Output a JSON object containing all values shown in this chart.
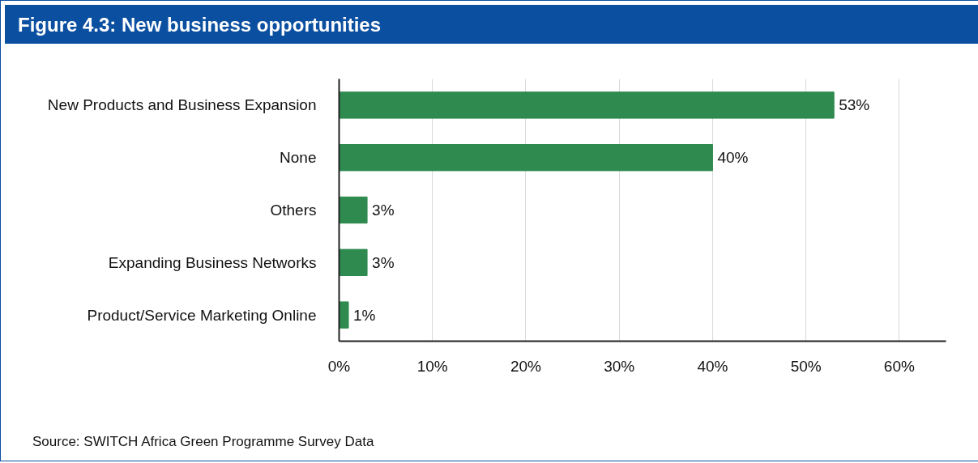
{
  "chart_data": {
    "type": "bar",
    "orientation": "horizontal",
    "title": "Figure 4.3: New business opportunities",
    "categories": [
      "New Products and Business Expansion",
      "None",
      "Others",
      "Expanding Business Networks",
      "Product/Service Marketing Online"
    ],
    "values": [
      53,
      40,
      3,
      3,
      1
    ],
    "value_labels": [
      "53%",
      "40%",
      "3%",
      "3%",
      "1%"
    ],
    "color": "#2e8a4f",
    "xlim": [
      0,
      65
    ],
    "xticks": [
      {
        "value": 0,
        "label": "0%"
      },
      {
        "value": 10,
        "label": "10%"
      },
      {
        "value": 20,
        "label": "20%"
      },
      {
        "value": 30,
        "label": "30%"
      },
      {
        "value": 40,
        "label": "40%"
      },
      {
        "value": 50,
        "label": "50%"
      },
      {
        "value": 60,
        "label": "60%"
      }
    ],
    "grid": "x",
    "annotations": [
      "Source: SWITCH Africa Green Programme Survey Data"
    ]
  }
}
